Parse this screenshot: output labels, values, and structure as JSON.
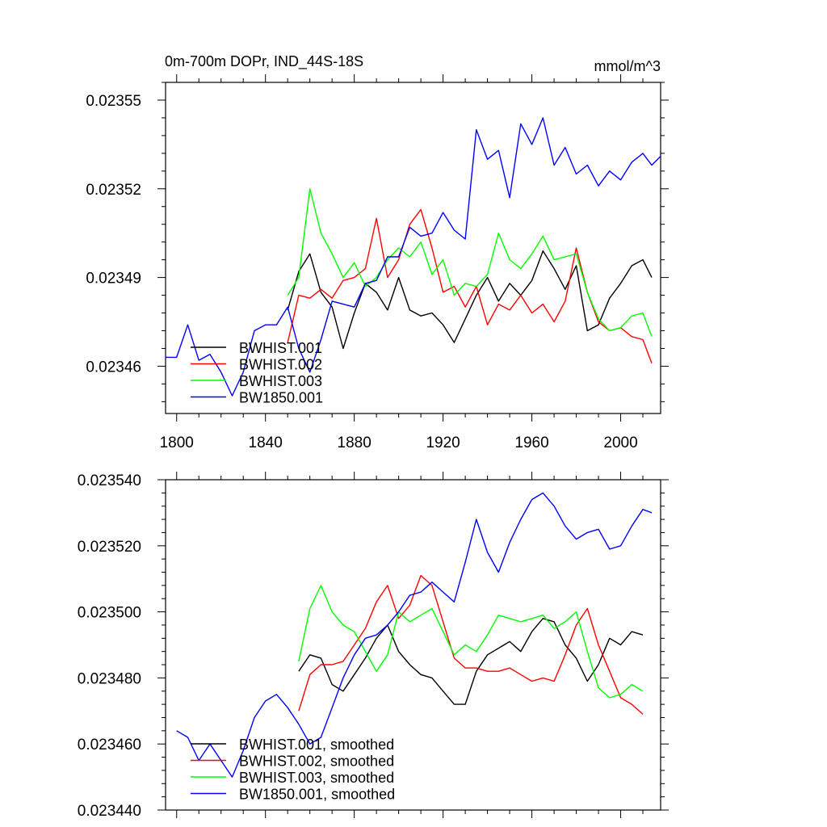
{
  "chart_data": [
    {
      "type": "line",
      "title": "0m-700m DOPr, IND_44S-18S",
      "units": "mmol/m^3",
      "xlim": [
        1795,
        2018
      ],
      "ylim": [
        0.023444,
        0.023556
      ],
      "xticks": [
        1800,
        1840,
        1880,
        1920,
        1960,
        2000
      ],
      "xtick_labels": [
        "1800",
        "1840",
        "1880",
        "1920",
        "1960",
        "2000"
      ],
      "yticks": [
        0.02346,
        0.02349,
        0.02352,
        0.02355
      ],
      "ytick_labels": [
        "0.02346",
        "0.02349",
        "0.02352",
        "0.02355"
      ],
      "legend_position": "lower-left",
      "series": [
        {
          "name": "BWHIST.001",
          "color": "#000000",
          "x": [
            1850,
            1855,
            1860,
            1865,
            1870,
            1875,
            1880,
            1885,
            1890,
            1895,
            1900,
            1905,
            1910,
            1915,
            1920,
            1925,
            1930,
            1935,
            1940,
            1945,
            1950,
            1955,
            1960,
            1965,
            1970,
            1975,
            1980,
            1985,
            1990,
            1995,
            2000,
            2005,
            2010,
            2014
          ],
          "y": [
            0.023479,
            0.023492,
            0.023498,
            0.023485,
            0.02348,
            0.023466,
            0.023478,
            0.023488,
            0.023485,
            0.023479,
            0.02349,
            0.023479,
            0.023477,
            0.023478,
            0.023474,
            0.023468,
            0.023476,
            0.023484,
            0.02349,
            0.023482,
            0.023488,
            0.023484,
            0.023489,
            0.023499,
            0.023493,
            0.023486,
            0.023494,
            0.023472,
            0.023474,
            0.023483,
            0.023488,
            0.023494,
            0.023496,
            0.02349
          ]
        },
        {
          "name": "BWHIST.002",
          "color": "#ff0000",
          "x": [
            1850,
            1855,
            1860,
            1865,
            1870,
            1875,
            1880,
            1885,
            1890,
            1895,
            1900,
            1905,
            1910,
            1915,
            1920,
            1925,
            1930,
            1935,
            1940,
            1945,
            1950,
            1955,
            1960,
            1965,
            1970,
            1975,
            1980,
            1985,
            1990,
            1995,
            2000,
            2005,
            2010,
            2014
          ],
          "y": [
            0.023468,
            0.023484,
            0.023483,
            0.023486,
            0.023483,
            0.023489,
            0.02349,
            0.023493,
            0.02351,
            0.02349,
            0.023496,
            0.023508,
            0.023513,
            0.0235,
            0.023485,
            0.023487,
            0.02348,
            0.023487,
            0.023474,
            0.023481,
            0.023479,
            0.023484,
            0.023478,
            0.023481,
            0.023475,
            0.023482,
            0.0235,
            0.023485,
            0.023475,
            0.023472,
            0.023473,
            0.02347,
            0.023469,
            0.023461
          ]
        },
        {
          "name": "BWHIST.003",
          "color": "#00ff00",
          "x": [
            1850,
            1855,
            1860,
            1865,
            1870,
            1875,
            1880,
            1885,
            1890,
            1895,
            1900,
            1905,
            1910,
            1915,
            1920,
            1925,
            1930,
            1935,
            1940,
            1945,
            1950,
            1955,
            1960,
            1965,
            1970,
            1975,
            1980,
            1985,
            1990,
            1995,
            2000,
            2005,
            2010,
            2014
          ],
          "y": [
            0.023484,
            0.02349,
            0.02352,
            0.023505,
            0.023498,
            0.02349,
            0.023495,
            0.023487,
            0.02349,
            0.023496,
            0.0235,
            0.023497,
            0.023502,
            0.023491,
            0.023496,
            0.023484,
            0.023488,
            0.023487,
            0.023491,
            0.023505,
            0.023496,
            0.023493,
            0.023498,
            0.023504,
            0.023496,
            0.023497,
            0.023498,
            0.023485,
            0.023476,
            0.023472,
            0.023473,
            0.023477,
            0.023478,
            0.02347
          ]
        },
        {
          "name": "BW1850.001",
          "color": "#0000ff",
          "x": [
            1795,
            1800,
            1805,
            1810,
            1815,
            1820,
            1825,
            1830,
            1835,
            1840,
            1845,
            1850,
            1855,
            1860,
            1865,
            1870,
            1875,
            1880,
            1885,
            1890,
            1895,
            1900,
            1905,
            1910,
            1915,
            1920,
            1925,
            1930,
            1935,
            1940,
            1945,
            1950,
            1955,
            1960,
            1965,
            1970,
            1975,
            1980,
            1985,
            1990,
            1995,
            2000,
            2005,
            2010,
            2014,
            2018
          ],
          "y": [
            0.023463,
            0.023463,
            0.023474,
            0.023462,
            0.023464,
            0.023458,
            0.02345,
            0.023458,
            0.023472,
            0.023474,
            0.023474,
            0.02348,
            0.023466,
            0.023458,
            0.023469,
            0.023482,
            0.023481,
            0.02348,
            0.023488,
            0.023489,
            0.023497,
            0.023497,
            0.023507,
            0.023504,
            0.023505,
            0.023512,
            0.023506,
            0.023503,
            0.02354,
            0.02353,
            0.023533,
            0.023517,
            0.023542,
            0.023535,
            0.023544,
            0.023528,
            0.023534,
            0.023525,
            0.023528,
            0.023521,
            0.023526,
            0.023523,
            0.023529,
            0.023532,
            0.023528,
            0.023531
          ]
        }
      ]
    },
    {
      "type": "line",
      "title": "",
      "xlim": [
        1795,
        2018
      ],
      "ylim": [
        0.02344,
        0.02354
      ],
      "xticks": [
        1800,
        1840,
        1880,
        1920,
        1960,
        2000
      ],
      "yticks": [
        0.02344,
        0.02346,
        0.02348,
        0.0235,
        0.02352,
        0.02354
      ],
      "ytick_labels": [
        "0.023440",
        "0.023460",
        "0.023480",
        "0.023500",
        "0.023520",
        "0.023540"
      ],
      "legend_position": "lower-left",
      "series": [
        {
          "name": "BWHIST.001, smoothed",
          "color": "#000000",
          "x": [
            1855,
            1860,
            1865,
            1870,
            1875,
            1880,
            1885,
            1890,
            1895,
            1900,
            1905,
            1910,
            1915,
            1920,
            1925,
            1930,
            1935,
            1940,
            1945,
            1950,
            1955,
            1960,
            1965,
            1970,
            1975,
            1980,
            1985,
            1990,
            1995,
            2000,
            2005,
            2010
          ],
          "y": [
            0.023482,
            0.023487,
            0.023486,
            0.023478,
            0.023476,
            0.023481,
            0.023486,
            0.023492,
            0.023496,
            0.023488,
            0.023484,
            0.023481,
            0.02348,
            0.023476,
            0.023472,
            0.023472,
            0.023482,
            0.023487,
            0.023489,
            0.023491,
            0.023488,
            0.023494,
            0.023498,
            0.023497,
            0.02349,
            0.023486,
            0.023479,
            0.023484,
            0.023492,
            0.02349,
            0.023494,
            0.023493
          ]
        },
        {
          "name": "BWHIST.002, smoothed",
          "color": "#ff0000",
          "x": [
            1855,
            1860,
            1865,
            1870,
            1875,
            1880,
            1885,
            1890,
            1895,
            1900,
            1905,
            1910,
            1915,
            1920,
            1925,
            1930,
            1935,
            1940,
            1945,
            1950,
            1955,
            1960,
            1965,
            1970,
            1975,
            1980,
            1985,
            1990,
            1995,
            2000,
            2005,
            2010
          ],
          "y": [
            0.02347,
            0.023481,
            0.023484,
            0.023484,
            0.023485,
            0.02349,
            0.023495,
            0.023503,
            0.023508,
            0.023498,
            0.023502,
            0.023511,
            0.023508,
            0.023497,
            0.023486,
            0.023483,
            0.023483,
            0.023482,
            0.023482,
            0.023483,
            0.023481,
            0.023479,
            0.02348,
            0.023479,
            0.023487,
            0.023496,
            0.023501,
            0.02349,
            0.023482,
            0.023474,
            0.023472,
            0.023469
          ]
        },
        {
          "name": "BWHIST.003, smoothed",
          "color": "#00ff00",
          "x": [
            1855,
            1860,
            1865,
            1870,
            1875,
            1880,
            1885,
            1890,
            1895,
            1900,
            1905,
            1910,
            1915,
            1920,
            1925,
            1930,
            1935,
            1940,
            1945,
            1950,
            1955,
            1960,
            1965,
            1970,
            1975,
            1980,
            1985,
            1990,
            1995,
            2000,
            2005,
            2010
          ],
          "y": [
            0.023485,
            0.023501,
            0.023508,
            0.0235,
            0.023496,
            0.023494,
            0.023488,
            0.023482,
            0.023487,
            0.0235,
            0.023497,
            0.023499,
            0.023501,
            0.023494,
            0.023487,
            0.02349,
            0.023488,
            0.023493,
            0.023499,
            0.023498,
            0.023497,
            0.023498,
            0.023499,
            0.023495,
            0.023497,
            0.0235,
            0.023488,
            0.023477,
            0.023474,
            0.023475,
            0.023478,
            0.023476
          ]
        },
        {
          "name": "BW1850.001, smoothed",
          "color": "#0000ff",
          "x": [
            1800,
            1805,
            1810,
            1815,
            1820,
            1825,
            1830,
            1835,
            1840,
            1845,
            1850,
            1855,
            1860,
            1865,
            1870,
            1875,
            1880,
            1885,
            1890,
            1895,
            1900,
            1905,
            1910,
            1915,
            1920,
            1925,
            1930,
            1935,
            1940,
            1945,
            1950,
            1955,
            1960,
            1965,
            1970,
            1975,
            1980,
            1985,
            1990,
            1995,
            2000,
            2005,
            2010,
            2014
          ],
          "y": [
            0.023464,
            0.023462,
            0.023455,
            0.02346,
            0.023455,
            0.02345,
            0.023458,
            0.023468,
            0.023473,
            0.023475,
            0.023471,
            0.023466,
            0.02346,
            0.023462,
            0.023471,
            0.02348,
            0.023487,
            0.023492,
            0.023493,
            0.023496,
            0.0235,
            0.023505,
            0.023506,
            0.023509,
            0.023506,
            0.023503,
            0.023515,
            0.023528,
            0.023518,
            0.023512,
            0.023521,
            0.023528,
            0.023534,
            0.023536,
            0.023532,
            0.023526,
            0.023522,
            0.023524,
            0.023525,
            0.023519,
            0.02352,
            0.023526,
            0.023531,
            0.02353
          ]
        }
      ]
    }
  ]
}
